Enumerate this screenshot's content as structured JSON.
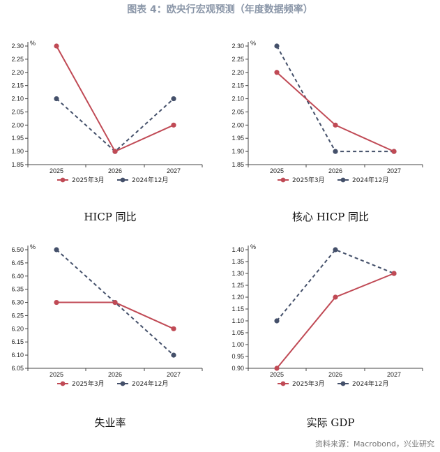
{
  "figure_title": "图表 4：欧央行宏观预测（年度数据频率）",
  "source": "资料来源：Macrobond，兴业研究",
  "colors": {
    "series_a": "#c04a55",
    "series_b": "#44506a"
  },
  "panels": [
    {
      "caption": "HICP 同比"
    },
    {
      "caption": "核心 HICP 同比"
    },
    {
      "caption": "失业率"
    },
    {
      "caption": "实际 GDP"
    }
  ],
  "chart_data": [
    {
      "type": "line",
      "title": "HICP 同比",
      "unit": "%",
      "categories": [
        "2025",
        "2026",
        "2027"
      ],
      "ylim": [
        1.85,
        2.3
      ],
      "yticks": [
        "1.85",
        "1.90",
        "1.95",
        "2.00",
        "2.05",
        "2.10",
        "2.15",
        "2.20",
        "2.25",
        "2.30"
      ],
      "series": [
        {
          "name": "2025年3月",
          "values": [
            2.3,
            1.9,
            2.0
          ],
          "style": "solid"
        },
        {
          "name": "2024年12月",
          "values": [
            2.1,
            1.9,
            2.1
          ],
          "style": "dashed"
        }
      ]
    },
    {
      "type": "line",
      "title": "核心 HICP 同比",
      "unit": "%",
      "categories": [
        "2025",
        "2026",
        "2027"
      ],
      "ylim": [
        1.85,
        2.3
      ],
      "yticks": [
        "1.85",
        "1.90",
        "1.95",
        "2.00",
        "2.05",
        "2.10",
        "2.15",
        "2.20",
        "2.25",
        "2.30"
      ],
      "series": [
        {
          "name": "2025年3月",
          "values": [
            2.2,
            2.0,
            1.9
          ],
          "style": "solid"
        },
        {
          "name": "2024年12月",
          "values": [
            2.3,
            1.9,
            1.9
          ],
          "style": "dashed"
        }
      ]
    },
    {
      "type": "line",
      "title": "失业率",
      "unit": "%",
      "categories": [
        "2025",
        "2026",
        "2027"
      ],
      "ylim": [
        6.05,
        6.5
      ],
      "yticks": [
        "6.05",
        "6.10",
        "6.15",
        "6.20",
        "6.25",
        "6.30",
        "6.35",
        "6.40",
        "6.45",
        "6.50"
      ],
      "series": [
        {
          "name": "2025年3月",
          "values": [
            6.3,
            6.3,
            6.2
          ],
          "style": "solid"
        },
        {
          "name": "2024年12月",
          "values": [
            6.5,
            6.3,
            6.1
          ],
          "style": "dashed"
        }
      ]
    },
    {
      "type": "line",
      "title": "实际 GDP",
      "unit": "%",
      "categories": [
        "2025",
        "2026",
        "2027"
      ],
      "ylim": [
        0.9,
        1.4
      ],
      "yticks": [
        "0.90",
        "0.95",
        "1.00",
        "1.05",
        "1.10",
        "1.15",
        "1.20",
        "1.25",
        "1.30",
        "1.35",
        "1.40"
      ],
      "series": [
        {
          "name": "2025年3月",
          "values": [
            0.9,
            1.2,
            1.3
          ],
          "style": "solid"
        },
        {
          "name": "2024年12月",
          "values": [
            1.1,
            1.4,
            1.3
          ],
          "style": "dashed"
        }
      ]
    }
  ]
}
